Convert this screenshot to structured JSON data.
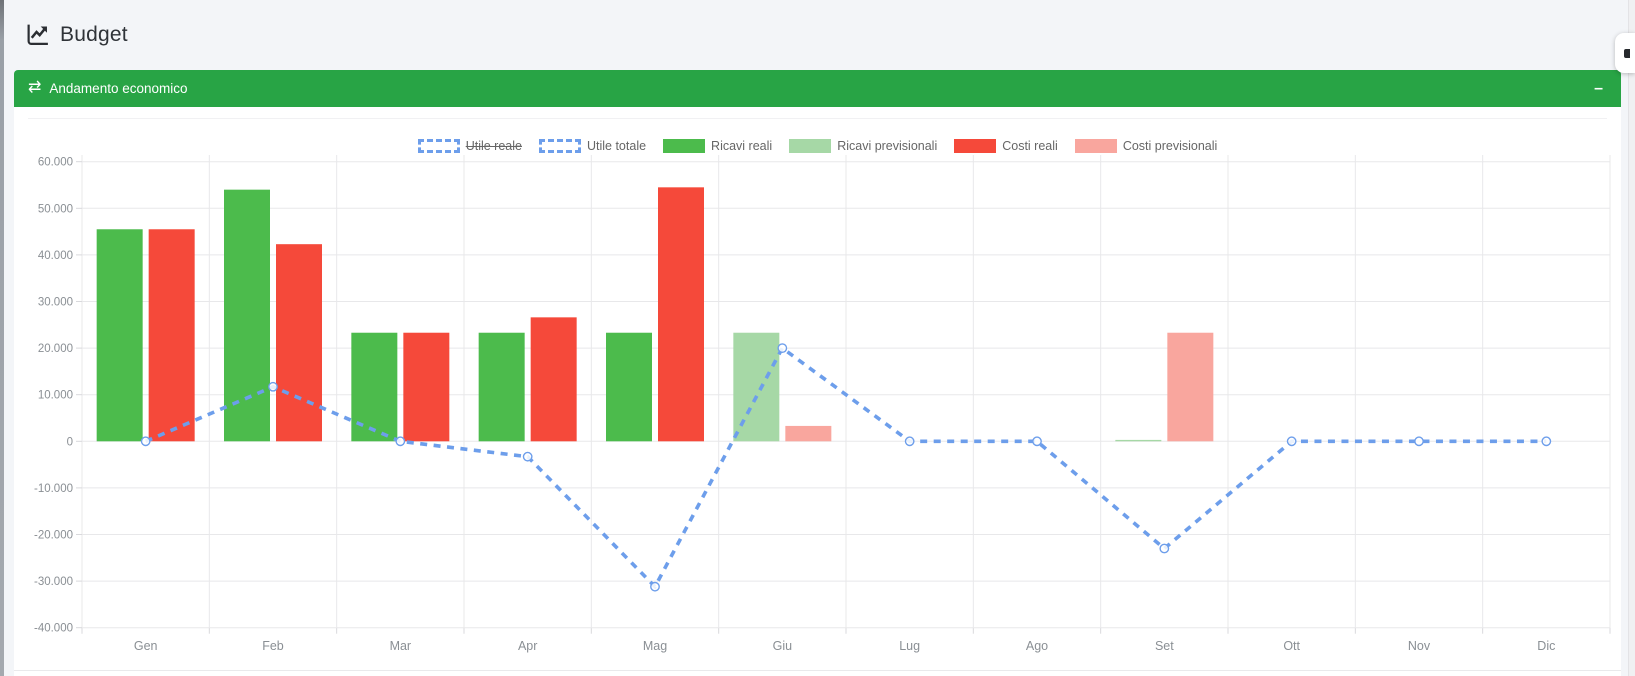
{
  "page": {
    "title": "Budget"
  },
  "panel": {
    "title": "Andamento economico",
    "collapse_label": "–"
  },
  "colors": {
    "header_green": "#28a445",
    "page_bg": "#f3f5f8",
    "grid": "#e8e8ea",
    "axis_stub": "#d9d9dc",
    "tick_text": "#8a8f94",
    "legend_text": "#666666",
    "line_blue": "#6d9eeb",
    "ricavi_reali_green": "#4cbb4c",
    "ricavi_previsionali_green": "#a6d8a6",
    "costi_reali_red": "#f5493a",
    "costi_previsionali_red": "#f9a69e"
  },
  "chart_data": {
    "type": "bar+line",
    "title": "",
    "xlabel": "",
    "ylabel": "",
    "categories": [
      "Gen",
      "Feb",
      "Mar",
      "Apr",
      "Mag",
      "Giu",
      "Lug",
      "Ago",
      "Set",
      "Ott",
      "Nov",
      "Dic"
    ],
    "series": [
      {
        "name": "Utile reale",
        "type": "line",
        "slot": "",
        "color": "#6d9eeb",
        "hidden": true,
        "values": null
      },
      {
        "name": "Utile totale",
        "type": "line",
        "slot": "",
        "color": "#6d9eeb",
        "hidden": false,
        "values": [
          0,
          11700,
          0,
          -3300,
          -31200,
          20000,
          0,
          0,
          -23000,
          0,
          0,
          0
        ]
      },
      {
        "name": "Ricavi reali",
        "type": "bar",
        "slot": "ricavi",
        "color": "#4cbb4c",
        "hidden": false,
        "values": [
          45500,
          54000,
          23300,
          23300,
          23300,
          0,
          0,
          0,
          0,
          0,
          0,
          0
        ]
      },
      {
        "name": "Ricavi previsionali",
        "type": "bar",
        "slot": "ricavi",
        "color": "#a6d8a6",
        "hidden": false,
        "values": [
          0,
          0,
          0,
          0,
          0,
          23300,
          0,
          0,
          300,
          0,
          0,
          0
        ]
      },
      {
        "name": "Costi reali",
        "type": "bar",
        "slot": "costi",
        "color": "#f5493a",
        "hidden": false,
        "values": [
          45500,
          42300,
          23300,
          26600,
          54500,
          0,
          0,
          0,
          0,
          0,
          0,
          0
        ]
      },
      {
        "name": "Costi previsionali",
        "type": "bar",
        "slot": "costi",
        "color": "#f9a69e",
        "hidden": false,
        "values": [
          0,
          0,
          0,
          0,
          0,
          3300,
          0,
          0,
          23300,
          0,
          0,
          0
        ]
      }
    ],
    "ylim": [
      -40000,
      60000
    ],
    "ytick_step": 10000,
    "y_ticks": [
      "60.000",
      "50.000",
      "40.000",
      "30.000",
      "20.000",
      "10.000",
      "0",
      "-10.000",
      "-20.000",
      "-30.000",
      "-40.000"
    ],
    "grid": true,
    "legend_position": "top"
  }
}
